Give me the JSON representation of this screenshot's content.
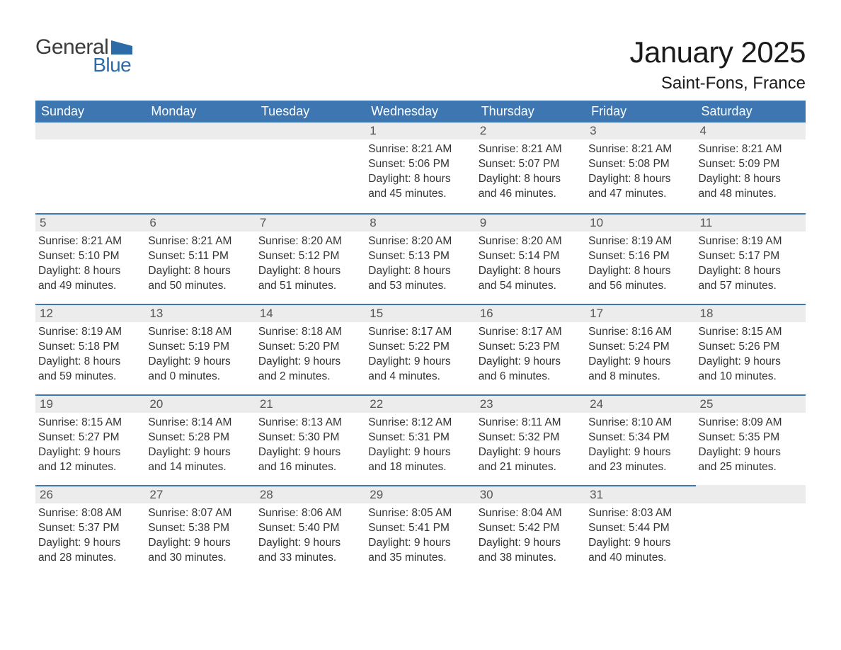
{
  "logo": {
    "part1": "General",
    "part2": "Blue"
  },
  "title": "January 2025",
  "location": "Saint-Fons, France",
  "colors": {
    "header_bg": "#3d76b0",
    "header_text": "#ffffff",
    "daynum_bg": "#ececec",
    "row_border": "#3d76b0",
    "text": "#333333",
    "logo_blue": "#2d6aa8"
  },
  "weekdays": [
    "Sunday",
    "Monday",
    "Tuesday",
    "Wednesday",
    "Thursday",
    "Friday",
    "Saturday"
  ],
  "weeks": [
    [
      null,
      null,
      null,
      {
        "n": "1",
        "sr": "8:21 AM",
        "ss": "5:06 PM",
        "dl": "8 hours and 45 minutes."
      },
      {
        "n": "2",
        "sr": "8:21 AM",
        "ss": "5:07 PM",
        "dl": "8 hours and 46 minutes."
      },
      {
        "n": "3",
        "sr": "8:21 AM",
        "ss": "5:08 PM",
        "dl": "8 hours and 47 minutes."
      },
      {
        "n": "4",
        "sr": "8:21 AM",
        "ss": "5:09 PM",
        "dl": "8 hours and 48 minutes."
      }
    ],
    [
      {
        "n": "5",
        "sr": "8:21 AM",
        "ss": "5:10 PM",
        "dl": "8 hours and 49 minutes."
      },
      {
        "n": "6",
        "sr": "8:21 AM",
        "ss": "5:11 PM",
        "dl": "8 hours and 50 minutes."
      },
      {
        "n": "7",
        "sr": "8:20 AM",
        "ss": "5:12 PM",
        "dl": "8 hours and 51 minutes."
      },
      {
        "n": "8",
        "sr": "8:20 AM",
        "ss": "5:13 PM",
        "dl": "8 hours and 53 minutes."
      },
      {
        "n": "9",
        "sr": "8:20 AM",
        "ss": "5:14 PM",
        "dl": "8 hours and 54 minutes."
      },
      {
        "n": "10",
        "sr": "8:19 AM",
        "ss": "5:16 PM",
        "dl": "8 hours and 56 minutes."
      },
      {
        "n": "11",
        "sr": "8:19 AM",
        "ss": "5:17 PM",
        "dl": "8 hours and 57 minutes."
      }
    ],
    [
      {
        "n": "12",
        "sr": "8:19 AM",
        "ss": "5:18 PM",
        "dl": "8 hours and 59 minutes."
      },
      {
        "n": "13",
        "sr": "8:18 AM",
        "ss": "5:19 PM",
        "dl": "9 hours and 0 minutes."
      },
      {
        "n": "14",
        "sr": "8:18 AM",
        "ss": "5:20 PM",
        "dl": "9 hours and 2 minutes."
      },
      {
        "n": "15",
        "sr": "8:17 AM",
        "ss": "5:22 PM",
        "dl": "9 hours and 4 minutes."
      },
      {
        "n": "16",
        "sr": "8:17 AM",
        "ss": "5:23 PM",
        "dl": "9 hours and 6 minutes."
      },
      {
        "n": "17",
        "sr": "8:16 AM",
        "ss": "5:24 PM",
        "dl": "9 hours and 8 minutes."
      },
      {
        "n": "18",
        "sr": "8:15 AM",
        "ss": "5:26 PM",
        "dl": "9 hours and 10 minutes."
      }
    ],
    [
      {
        "n": "19",
        "sr": "8:15 AM",
        "ss": "5:27 PM",
        "dl": "9 hours and 12 minutes."
      },
      {
        "n": "20",
        "sr": "8:14 AM",
        "ss": "5:28 PM",
        "dl": "9 hours and 14 minutes."
      },
      {
        "n": "21",
        "sr": "8:13 AM",
        "ss": "5:30 PM",
        "dl": "9 hours and 16 minutes."
      },
      {
        "n": "22",
        "sr": "8:12 AM",
        "ss": "5:31 PM",
        "dl": "9 hours and 18 minutes."
      },
      {
        "n": "23",
        "sr": "8:11 AM",
        "ss": "5:32 PM",
        "dl": "9 hours and 21 minutes."
      },
      {
        "n": "24",
        "sr": "8:10 AM",
        "ss": "5:34 PM",
        "dl": "9 hours and 23 minutes."
      },
      {
        "n": "25",
        "sr": "8:09 AM",
        "ss": "5:35 PM",
        "dl": "9 hours and 25 minutes."
      }
    ],
    [
      {
        "n": "26",
        "sr": "8:08 AM",
        "ss": "5:37 PM",
        "dl": "9 hours and 28 minutes."
      },
      {
        "n": "27",
        "sr": "8:07 AM",
        "ss": "5:38 PM",
        "dl": "9 hours and 30 minutes."
      },
      {
        "n": "28",
        "sr": "8:06 AM",
        "ss": "5:40 PM",
        "dl": "9 hours and 33 minutes."
      },
      {
        "n": "29",
        "sr": "8:05 AM",
        "ss": "5:41 PM",
        "dl": "9 hours and 35 minutes."
      },
      {
        "n": "30",
        "sr": "8:04 AM",
        "ss": "5:42 PM",
        "dl": "9 hours and 38 minutes."
      },
      {
        "n": "31",
        "sr": "8:03 AM",
        "ss": "5:44 PM",
        "dl": "9 hours and 40 minutes."
      },
      null
    ]
  ],
  "labels": {
    "sunrise": "Sunrise: ",
    "sunset": "Sunset: ",
    "daylight": "Daylight: "
  }
}
